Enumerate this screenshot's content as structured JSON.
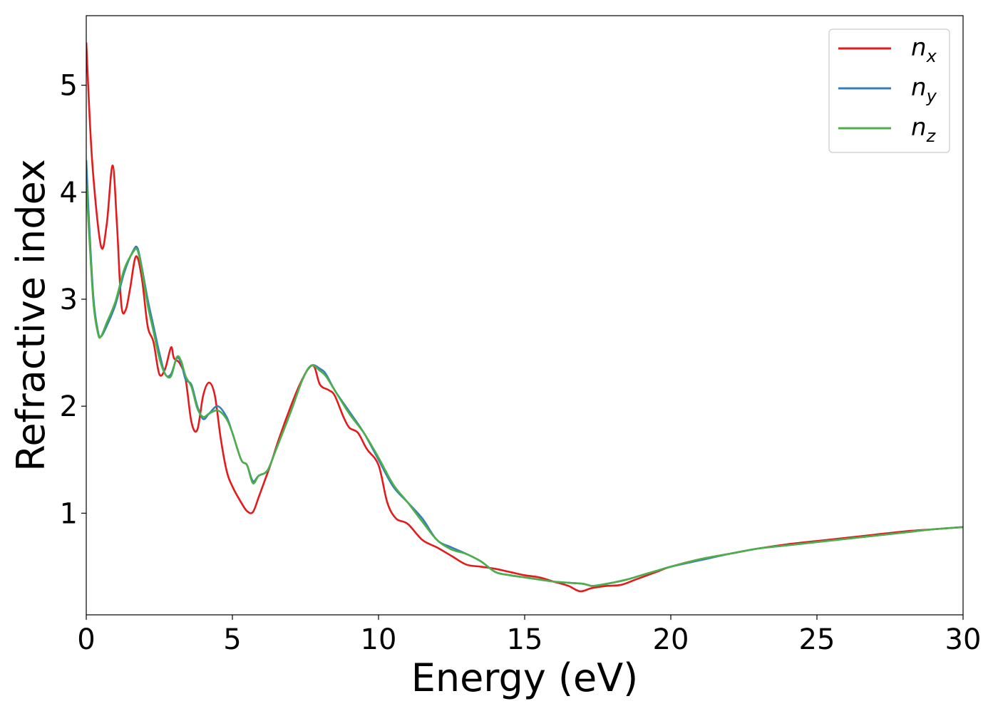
{
  "chart_data": {
    "type": "line",
    "xlabel": "Energy (eV)",
    "ylabel": "Refractive index",
    "xlim": [
      0,
      30
    ],
    "ylim": [
      0.05,
      5.65
    ],
    "xticks": [
      "0",
      "5",
      "10",
      "15",
      "20",
      "25",
      "30"
    ],
    "yticks": [
      "1",
      "2",
      "3",
      "4",
      "5"
    ],
    "grid": false,
    "legend_position": "top-right",
    "series": [
      {
        "name": "n",
        "subscript": "x",
        "color": "#e41a1c",
        "x": [
          0,
          0.2,
          0.5,
          0.7,
          0.9,
          1.05,
          1.2,
          1.35,
          1.5,
          1.7,
          1.9,
          2.1,
          2.3,
          2.5,
          2.7,
          2.9,
          3.0,
          3.2,
          3.4,
          3.6,
          3.8,
          4.0,
          4.2,
          4.4,
          4.6,
          4.8,
          5.0,
          5.3,
          5.5,
          5.7,
          5.9,
          6.1,
          6.3,
          6.6,
          7.0,
          7.3,
          7.6,
          7.8,
          8.0,
          8.3,
          8.5,
          8.8,
          9.0,
          9.3,
          9.6,
          10.0,
          10.3,
          10.6,
          11.0,
          11.5,
          12.0,
          12.5,
          13.0,
          13.5,
          14.0,
          14.5,
          15.0,
          15.5,
          16.0,
          16.5,
          16.9,
          17.3,
          17.8,
          18.3,
          18.8,
          19.5,
          20.0,
          21.0,
          22.0,
          23.0,
          24.0,
          25.0,
          26.0,
          27.0,
          28.0,
          29.0,
          30.0
        ],
        "y": [
          5.4,
          4.3,
          3.5,
          3.7,
          4.25,
          3.7,
          2.95,
          2.9,
          3.1,
          3.4,
          3.2,
          2.75,
          2.6,
          2.3,
          2.35,
          2.55,
          2.45,
          2.4,
          2.25,
          1.85,
          1.78,
          2.1,
          2.22,
          2.1,
          1.7,
          1.4,
          1.25,
          1.1,
          1.02,
          1.01,
          1.15,
          1.3,
          1.45,
          1.7,
          2.0,
          2.2,
          2.35,
          2.37,
          2.2,
          2.15,
          2.1,
          1.9,
          1.8,
          1.75,
          1.6,
          1.45,
          1.1,
          0.95,
          0.9,
          0.75,
          0.68,
          0.6,
          0.52,
          0.5,
          0.48,
          0.45,
          0.42,
          0.4,
          0.36,
          0.32,
          0.27,
          0.3,
          0.32,
          0.33,
          0.38,
          0.45,
          0.5,
          0.57,
          0.62,
          0.67,
          0.71,
          0.74,
          0.77,
          0.8,
          0.83,
          0.85,
          0.87
        ]
      },
      {
        "name": "n",
        "subscript": "y",
        "color": "#377eb8",
        "x": [
          0,
          0.1,
          0.25,
          0.4,
          0.5,
          0.7,
          1.0,
          1.3,
          1.6,
          1.75,
          1.9,
          2.1,
          2.3,
          2.5,
          2.7,
          2.9,
          3.1,
          3.25,
          3.4,
          3.6,
          3.8,
          4.0,
          4.2,
          4.5,
          4.8,
          5.0,
          5.3,
          5.5,
          5.7,
          5.9,
          6.2,
          6.5,
          7.0,
          7.4,
          7.7,
          8.0,
          8.2,
          8.5,
          9.0,
          9.5,
          10.0,
          10.5,
          11.0,
          11.5,
          12.0,
          12.5,
          13.0,
          13.5,
          14.0,
          14.5,
          15.0,
          15.5,
          16.0,
          16.5,
          17.0,
          17.3,
          17.6,
          18.0,
          18.5,
          19.0,
          19.5,
          20.0,
          21.0,
          22.0,
          23.0,
          24.0,
          25.0,
          26.0,
          27.0,
          28.0,
          29.0,
          30.0
        ],
        "y": [
          4.3,
          3.7,
          3.0,
          2.7,
          2.65,
          2.75,
          2.95,
          3.25,
          3.45,
          3.48,
          3.3,
          3.0,
          2.75,
          2.5,
          2.3,
          2.3,
          2.45,
          2.4,
          2.25,
          2.2,
          2.0,
          1.88,
          1.93,
          2.0,
          1.9,
          1.75,
          1.5,
          1.45,
          1.3,
          1.35,
          1.4,
          1.6,
          1.95,
          2.25,
          2.38,
          2.35,
          2.3,
          2.15,
          1.95,
          1.75,
          1.5,
          1.25,
          1.1,
          0.95,
          0.75,
          0.68,
          0.62,
          0.55,
          0.45,
          0.42,
          0.4,
          0.38,
          0.36,
          0.35,
          0.34,
          0.32,
          0.33,
          0.35,
          0.38,
          0.42,
          0.46,
          0.5,
          0.56,
          0.62,
          0.67,
          0.7,
          0.73,
          0.76,
          0.79,
          0.82,
          0.85,
          0.87
        ]
      },
      {
        "name": "n",
        "subscript": "z",
        "color": "#4daf4a",
        "x": [
          0,
          0.1,
          0.25,
          0.4,
          0.5,
          0.7,
          1.0,
          1.3,
          1.6,
          1.75,
          1.9,
          2.1,
          2.3,
          2.5,
          2.7,
          2.9,
          3.1,
          3.25,
          3.4,
          3.6,
          3.8,
          4.0,
          4.2,
          4.5,
          4.8,
          5.0,
          5.3,
          5.5,
          5.7,
          5.9,
          6.2,
          6.5,
          7.0,
          7.4,
          7.7,
          8.0,
          8.2,
          8.5,
          9.0,
          9.5,
          10.0,
          10.5,
          11.0,
          11.5,
          12.0,
          12.5,
          13.0,
          13.5,
          14.0,
          14.5,
          15.0,
          15.5,
          16.0,
          16.5,
          17.0,
          17.3,
          17.6,
          18.0,
          18.5,
          19.0,
          19.5,
          20.0,
          21.0,
          22.0,
          23.0,
          24.0,
          25.0,
          26.0,
          27.0,
          28.0,
          29.0,
          30.0
        ],
        "y": [
          4.08,
          3.6,
          2.95,
          2.68,
          2.65,
          2.78,
          2.98,
          3.28,
          3.44,
          3.46,
          3.28,
          2.95,
          2.7,
          2.45,
          2.3,
          2.28,
          2.46,
          2.42,
          2.28,
          2.18,
          1.98,
          1.9,
          1.93,
          1.96,
          1.88,
          1.75,
          1.5,
          1.45,
          1.28,
          1.35,
          1.4,
          1.6,
          1.95,
          2.25,
          2.38,
          2.33,
          2.28,
          2.15,
          1.93,
          1.75,
          1.52,
          1.27,
          1.1,
          0.92,
          0.75,
          0.66,
          0.62,
          0.55,
          0.45,
          0.42,
          0.4,
          0.38,
          0.36,
          0.35,
          0.34,
          0.32,
          0.33,
          0.35,
          0.38,
          0.42,
          0.46,
          0.5,
          0.57,
          0.62,
          0.67,
          0.7,
          0.73,
          0.76,
          0.79,
          0.82,
          0.85,
          0.87
        ]
      }
    ]
  }
}
